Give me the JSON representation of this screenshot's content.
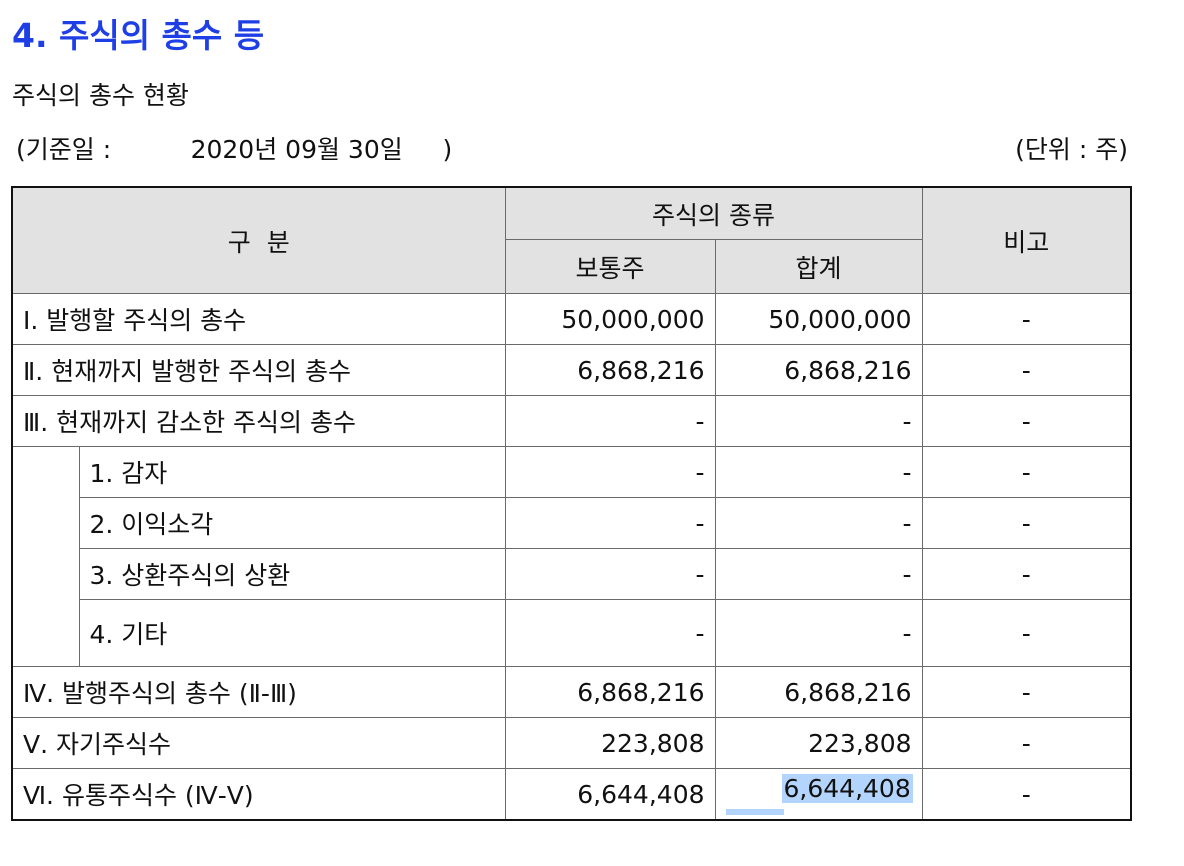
{
  "section_title": "4. 주식의 총수 등",
  "subtitle": "주식의 총수 현황",
  "base_date_label": "(기준일 :",
  "base_date_value": "2020년 09월 30일",
  "base_date_close": ")",
  "unit_label": "(단위 : 주)",
  "table": {
    "header": {
      "category": "구  분",
      "stock_type": "주식의 종류",
      "common": "보통주",
      "total": "합계",
      "remarks": "비고"
    },
    "rows": [
      {
        "label": "Ⅰ. 발행할 주식의 총수",
        "common": "50,000,000",
        "total": "50,000,000",
        "remarks": "-"
      },
      {
        "label": "Ⅱ. 현재까지 발행한 주식의 총수",
        "common": "6,868,216",
        "total": "6,868,216",
        "remarks": "-"
      },
      {
        "label": "Ⅲ. 현재까지 감소한 주식의 총수",
        "common": "-",
        "total": "-",
        "remarks": "-"
      },
      {
        "label": "1. 감자",
        "common": "-",
        "total": "-",
        "remarks": "-"
      },
      {
        "label": "2. 이익소각",
        "common": "-",
        "total": "-",
        "remarks": "-"
      },
      {
        "label": "3. 상환주식의 상환",
        "common": "-",
        "total": "-",
        "remarks": "-"
      },
      {
        "label": "4. 기타",
        "common": "-",
        "total": "-",
        "remarks": "-"
      },
      {
        "label": "Ⅳ. 발행주식의 총수 (Ⅱ-Ⅲ)",
        "common": "6,868,216",
        "total": "6,868,216",
        "remarks": "-"
      },
      {
        "label": "Ⅴ. 자기주식수",
        "common": "223,808",
        "total": "223,808",
        "remarks": "-"
      },
      {
        "label": "Ⅵ. 유통주식수 (Ⅳ-Ⅴ)",
        "common": "6,644,408",
        "total": "6,644,408",
        "remarks": "-"
      }
    ]
  },
  "colors": {
    "title": "#1f3fe6",
    "header_bg": "#e2e2e2",
    "selection": "#b3d4fc"
  }
}
